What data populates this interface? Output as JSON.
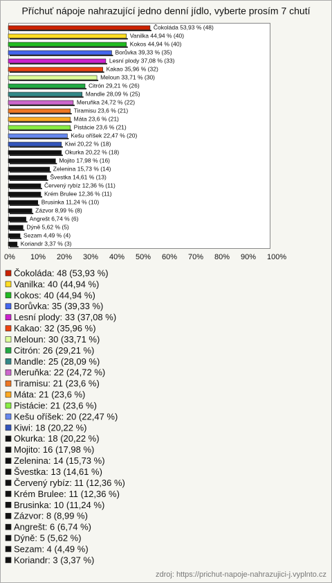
{
  "chart_data": {
    "type": "bar",
    "orientation": "horizontal",
    "title": "Příchuť nápoje nahrazující jedno denní jídlo, vyberte prosím 7 chutí",
    "values": [
      53.93,
      44.94,
      44.94,
      39.33,
      37.08,
      35.96,
      33.71,
      29.21,
      28.09,
      24.72,
      23.6,
      23.6,
      23.6,
      22.47,
      20.22,
      20.22,
      17.98,
      15.73,
      14.61,
      12.36,
      12.36,
      11.24,
      8.99,
      6.74,
      5.62,
      4.49,
      3.37
    ],
    "value_labels": [
      "Čokoláda 53,93 % (48)",
      "Vanilka 44,94 % (40)",
      "Kokos 44,94 % (40)",
      "Borůvka 39,33 % (35)",
      "Lesní plody 37,08 % (33)",
      "Kakao 35,96 % (32)",
      "Meloun 33,71 % (30)",
      "Citrón 29,21 % (26)",
      "Mandle 28,09 % (25)",
      "Meruňka 24,72 % (22)",
      "Tiramisu 23,6 % (21)",
      "Máta 23,6 % (21)",
      "Pistácie 23,6 % (21)",
      "Kešu oříšek 22,47 % (20)",
      "Kiwi 20,22 % (18)",
      "Okurka 20,22 % (18)",
      "Mojito 17,98 % (16)",
      "Zelenina 15,73 % (14)",
      "Švestka 14,61 % (13)",
      "Červený rybíz 12,36 % (11)",
      "Krém Brulee 12,36 % (11)",
      "Brusinka 11,24 % (10)",
      "Zázvor 8,99 % (8)",
      "Angrešt 6,74 % (6)",
      "Dýně 5,62 % (5)",
      "Sezam 4,49 % (4)",
      "Koriandr 3,37 % (3)"
    ],
    "legend_labels": [
      "Čokoláda: 48 (53,93 %)",
      "Vanilka: 40 (44,94 %)",
      "Kokos: 40 (44,94 %)",
      "Borůvka: 35 (39,33 %)",
      "Lesní plody: 33 (37,08 %)",
      "Kakao: 32 (35,96 %)",
      "Meloun: 30 (33,71 %)",
      "Citrón: 26 (29,21 %)",
      "Mandle: 25 (28,09 %)",
      "Meruňka: 22 (24,72 %)",
      "Tiramisu: 21 (23,6 %)",
      "Máta: 21 (23,6 %)",
      "Pistácie: 21 (23,6 %)",
      "Kešu oříšek: 20 (22,47 %)",
      "Kiwi: 18 (20,22 %)",
      "Okurka: 18 (20,22 %)",
      "Mojito: 16 (17,98 %)",
      "Zelenina: 14 (15,73 %)",
      "Švestka: 13 (14,61 %)",
      "Červený rybíz: 11 (12,36 %)",
      "Krém Brulee: 11 (12,36 %)",
      "Brusinka: 10 (11,24 %)",
      "Zázvor: 8 (8,99 %)",
      "Angrešt: 6 (6,74 %)",
      "Dýně: 5 (5,62 %)",
      "Sezam: 4 (4,49 %)",
      "Koriandr: 3 (3,37 %)"
    ],
    "colors": [
      "#cc2200",
      "#ffdd22",
      "#22bb22",
      "#4466ee",
      "#cc22cc",
      "#ee4411",
      "#ddff99",
      "#22aa44",
      "#338888",
      "#cc66cc",
      "#ee7722",
      "#ffaa22",
      "#88ee44",
      "#6688ee",
      "#3355bb",
      "#111111",
      "#111111",
      "#111111",
      "#111111",
      "#111111",
      "#111111",
      "#111111",
      "#111111",
      "#111111",
      "#111111",
      "#111111",
      "#111111"
    ],
    "xlim": [
      0,
      100
    ],
    "xticks": [
      {
        "value": 0,
        "label": "0%"
      },
      {
        "value": 10,
        "label": "10%"
      },
      {
        "value": 20,
        "label": "20%"
      },
      {
        "value": 30,
        "label": "30%"
      },
      {
        "value": 40,
        "label": "40%"
      },
      {
        "value": 50,
        "label": "50%"
      },
      {
        "value": 60,
        "label": "60%"
      },
      {
        "value": 70,
        "label": "70%"
      },
      {
        "value": 80,
        "label": "80%"
      },
      {
        "value": 90,
        "label": "90%"
      },
      {
        "value": 100,
        "label": "100%"
      }
    ],
    "source": "zdroj: https://prichut-napoje-nahrazujici-j.vyplnto.cz"
  }
}
